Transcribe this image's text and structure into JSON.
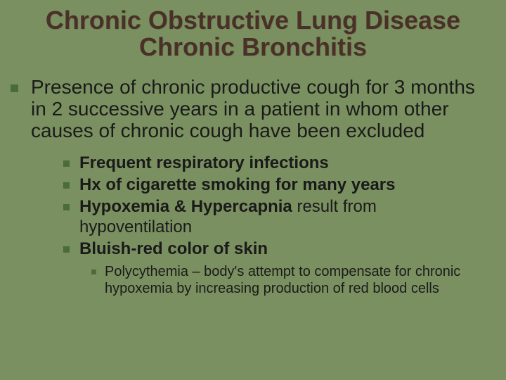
{
  "colors": {
    "background": "#7a9060",
    "title": "#4a3028",
    "bullet": "#4a6b3a",
    "body_text": "#1a1a1a"
  },
  "typography": {
    "title_fontsize": 36,
    "lvl1_fontsize": 28,
    "lvl2_fontsize": 24,
    "lvl3_fontsize": 20,
    "font_family": "Tahoma"
  },
  "title": {
    "line1": "Chronic Obstructive Lung Disease",
    "line2": "Chronic Bronchitis"
  },
  "lvl1": {
    "text": "Presence of chronic productive cough for 3 months in 2 successive years in a patient in whom other causes of chronic cough have been excluded"
  },
  "lvl2": [
    {
      "bold": "Frequent respiratory infections",
      "rest": ""
    },
    {
      "bold": "Hx of cigarette smoking for many years",
      "rest": ""
    },
    {
      "bold": "Hypoxemia & Hypercapnia",
      "rest": " result from hypoventilation"
    },
    {
      "bold": "Bluish-red color of skin",
      "rest": ""
    }
  ],
  "lvl3": {
    "text": "Polycythemia – body's attempt to compensate for chronic hypoxemia by increasing production of red blood cells"
  }
}
